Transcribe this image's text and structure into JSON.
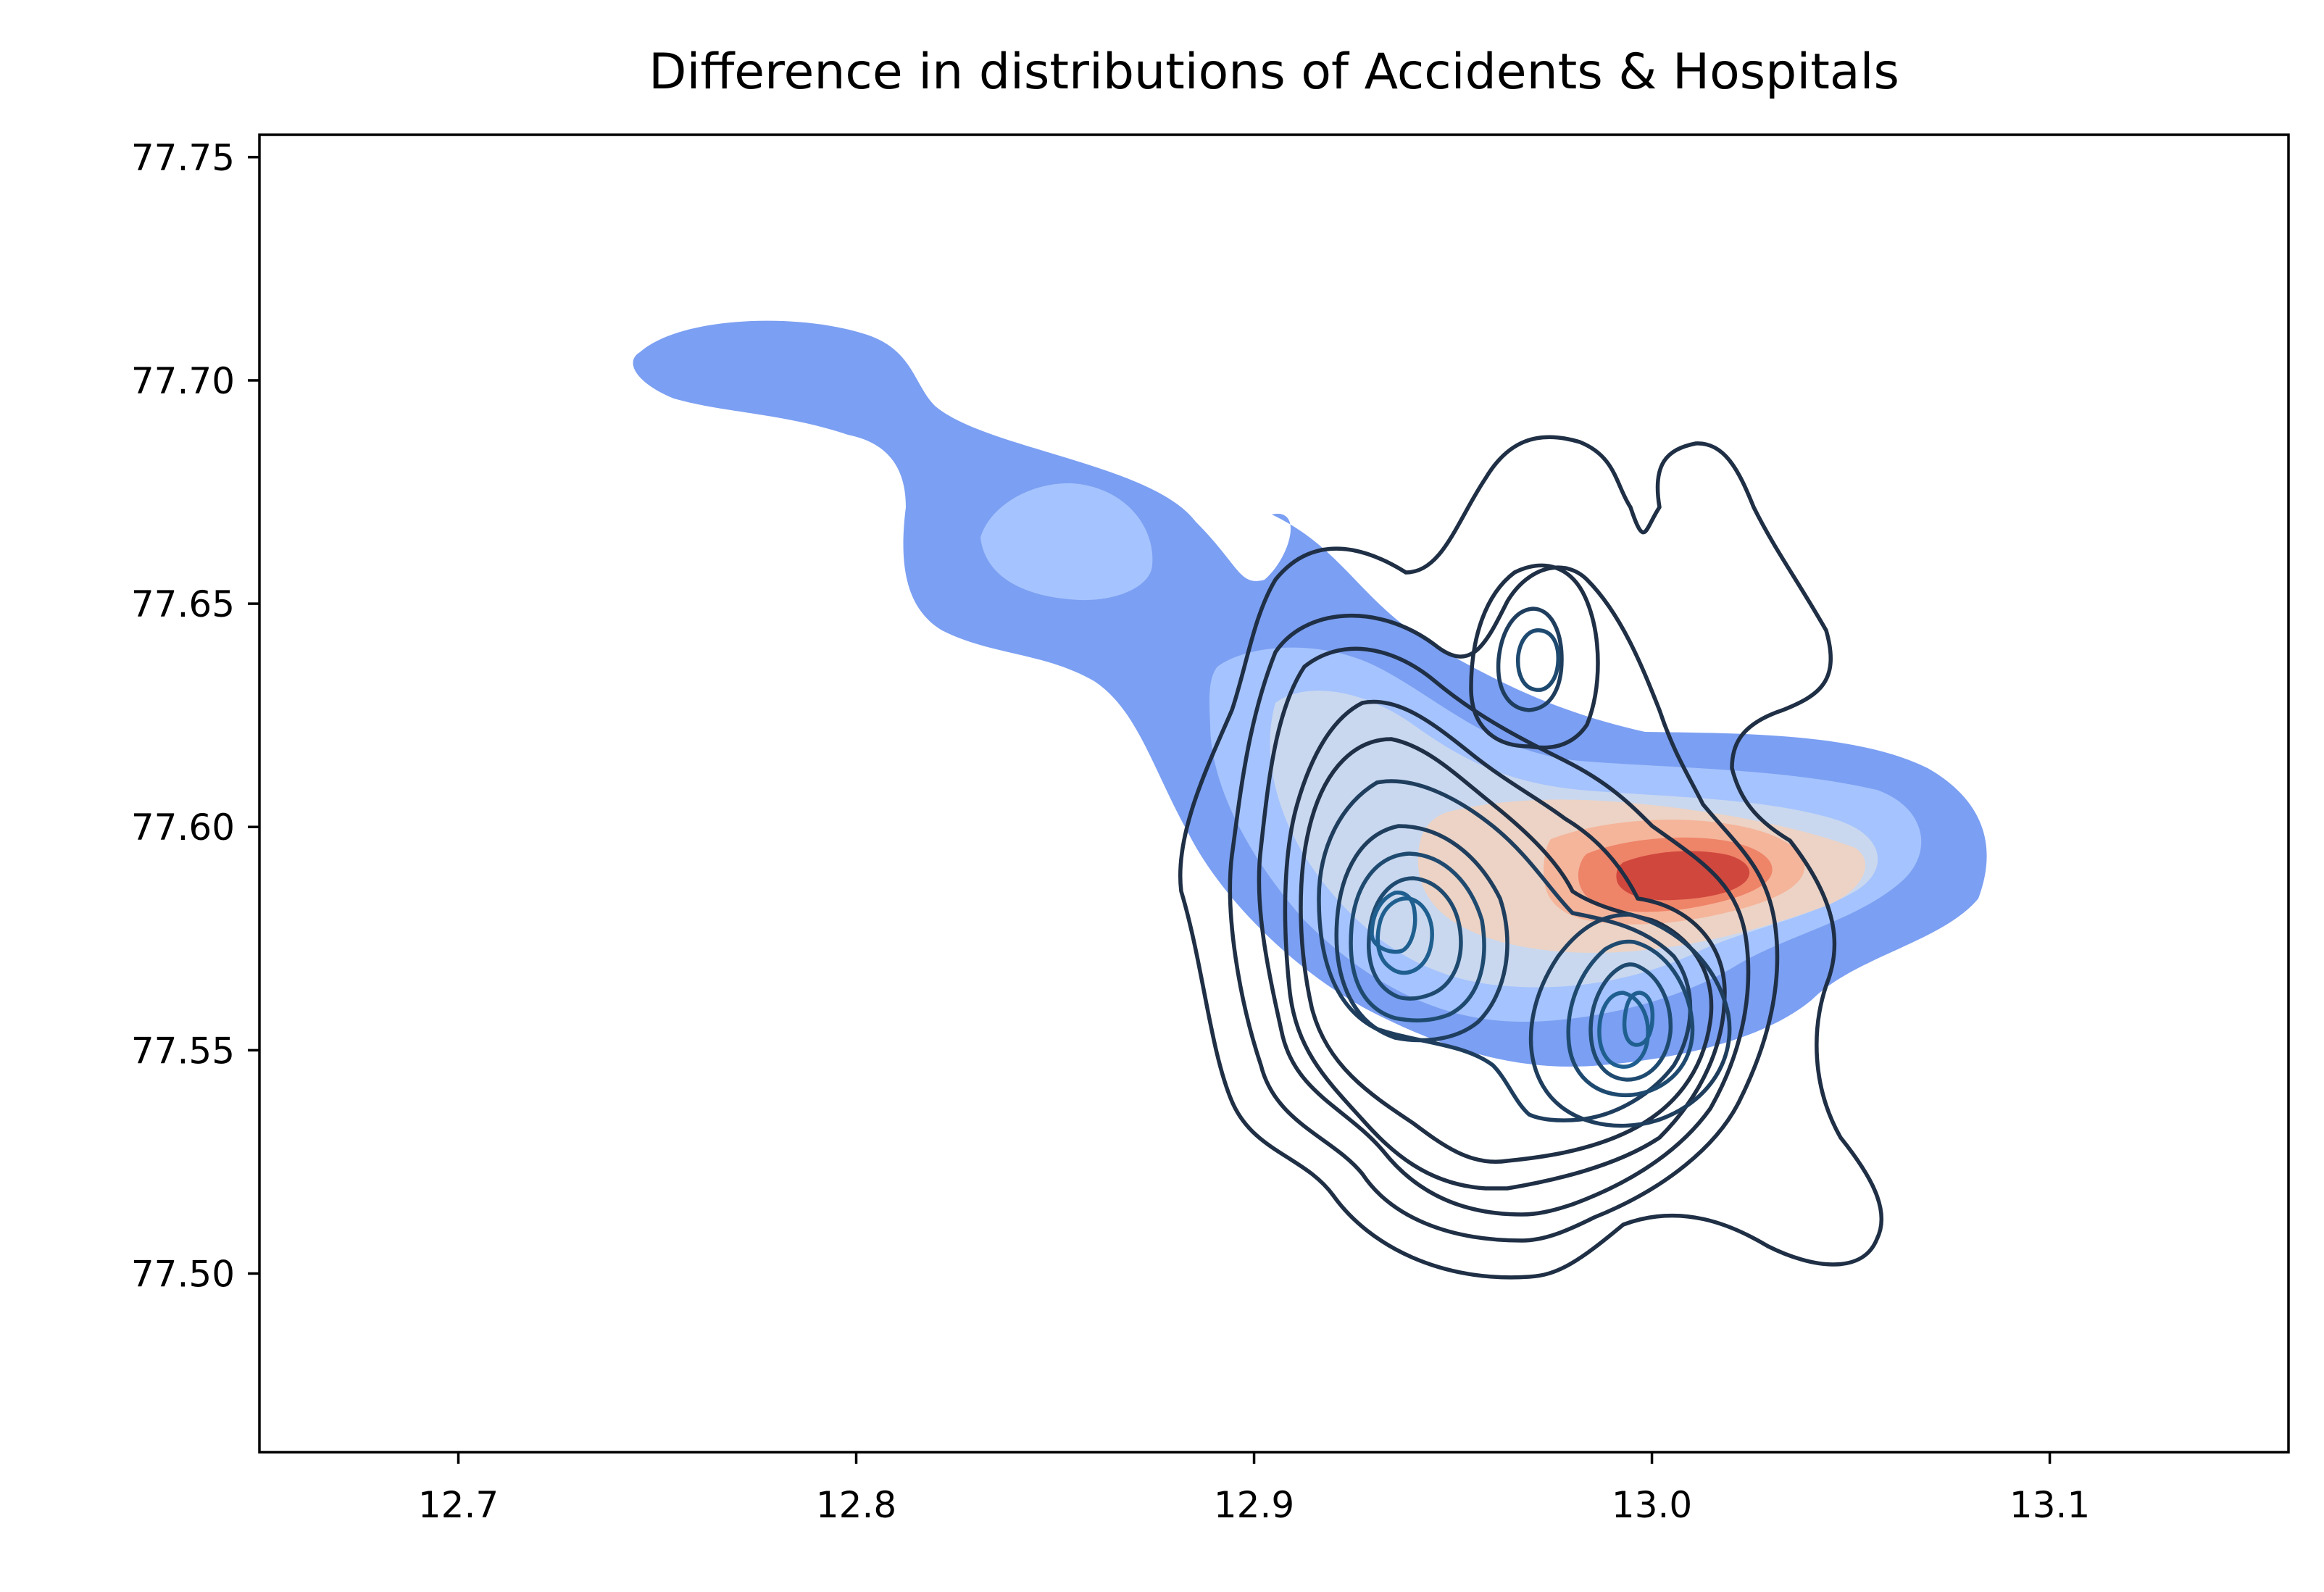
{
  "chart_data": {
    "type": "kde",
    "title": "Difference in distributions of Accidents & Hospitals",
    "xlabel": "",
    "ylabel": "",
    "xlim": [
      12.65,
      13.16
    ],
    "ylim": [
      77.46,
      77.755
    ],
    "xticks": [
      12.7,
      12.8,
      12.9,
      13.0,
      13.1
    ],
    "xtick_labels": [
      "12.7",
      "12.8",
      "12.9",
      "13.0",
      "13.1"
    ],
    "yticks": [
      77.5,
      77.55,
      77.6,
      77.65,
      77.7,
      77.75
    ],
    "ytick_labels": [
      "77.50",
      "77.55",
      "77.60",
      "77.65",
      "77.70",
      "77.75"
    ],
    "grid": false,
    "filled_kde": {
      "colormap": "coolwarm",
      "peak": {
        "x": 13.015,
        "y": 77.588
      },
      "tail_end": {
        "x": 12.75,
        "y": 77.7
      },
      "secondary_peak": {
        "x": 12.853,
        "y": 77.665
      },
      "level_colors": [
        "#7b9ff2",
        "#a5c3fe",
        "#c9d8ef",
        "#ecd3c5",
        "#f5b59b",
        "#ee8468",
        "#d0473d"
      ]
    },
    "line_kde": {
      "color": "#1f2f45",
      "inner_color": "#1f5f8f",
      "peaks": [
        {
          "x": 12.93,
          "y": 77.58
        },
        {
          "x": 12.999,
          "y": 77.557
        },
        {
          "x": 12.972,
          "y": 77.637
        }
      ]
    }
  }
}
